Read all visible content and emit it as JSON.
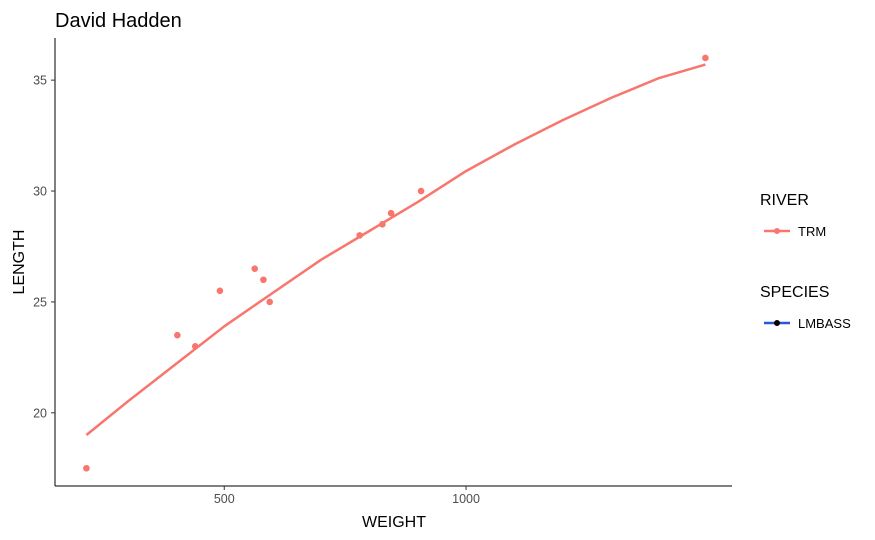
{
  "chart_data": {
    "type": "scatter",
    "title": "David Hadden",
    "xlabel": "WEIGHT",
    "ylabel": "LENGTH",
    "xlim": [
      150,
      1550
    ],
    "ylim": [
      16.7,
      36.9
    ],
    "x_ticks": [
      500,
      1000
    ],
    "y_ticks": [
      20,
      25,
      30,
      35
    ],
    "x_tick_labels": [
      "500",
      "1000"
    ],
    "y_tick_labels": [
      "20",
      "25",
      "30",
      "35"
    ],
    "grid": false,
    "legend_position": "right",
    "series": [
      {
        "name": "TRM",
        "color": "#F8766D",
        "points": [
          {
            "x": 215,
            "y": 17.5
          },
          {
            "x": 403,
            "y": 23.5
          },
          {
            "x": 440,
            "y": 23.0
          },
          {
            "x": 491,
            "y": 25.5
          },
          {
            "x": 563,
            "y": 26.5
          },
          {
            "x": 581,
            "y": 26.0
          },
          {
            "x": 594,
            "y": 25.0
          },
          {
            "x": 780,
            "y": 28.0
          },
          {
            "x": 827,
            "y": 28.5
          },
          {
            "x": 845,
            "y": 29.0
          },
          {
            "x": 907,
            "y": 30.0
          },
          {
            "x": 1495,
            "y": 36.0
          }
        ],
        "smooth": [
          {
            "x": 215,
            "y": 19.0
          },
          {
            "x": 300,
            "y": 20.5
          },
          {
            "x": 400,
            "y": 22.2
          },
          {
            "x": 500,
            "y": 23.9
          },
          {
            "x": 600,
            "y": 25.4
          },
          {
            "x": 700,
            "y": 26.9
          },
          {
            "x": 800,
            "y": 28.2
          },
          {
            "x": 900,
            "y": 29.5
          },
          {
            "x": 1000,
            "y": 30.9
          },
          {
            "x": 1100,
            "y": 32.1
          },
          {
            "x": 1200,
            "y": 33.2
          },
          {
            "x": 1300,
            "y": 34.2
          },
          {
            "x": 1400,
            "y": 35.1
          },
          {
            "x": 1495,
            "y": 35.7
          }
        ]
      }
    ],
    "legends": [
      {
        "title": "RIVER",
        "items": [
          {
            "label": "TRM",
            "color": "#F8766D"
          }
        ]
      },
      {
        "title": "SPECIES",
        "items": [
          {
            "label": "LMBASS",
            "color": "#2A57D6",
            "point_color": "#000000"
          }
        ]
      }
    ]
  }
}
